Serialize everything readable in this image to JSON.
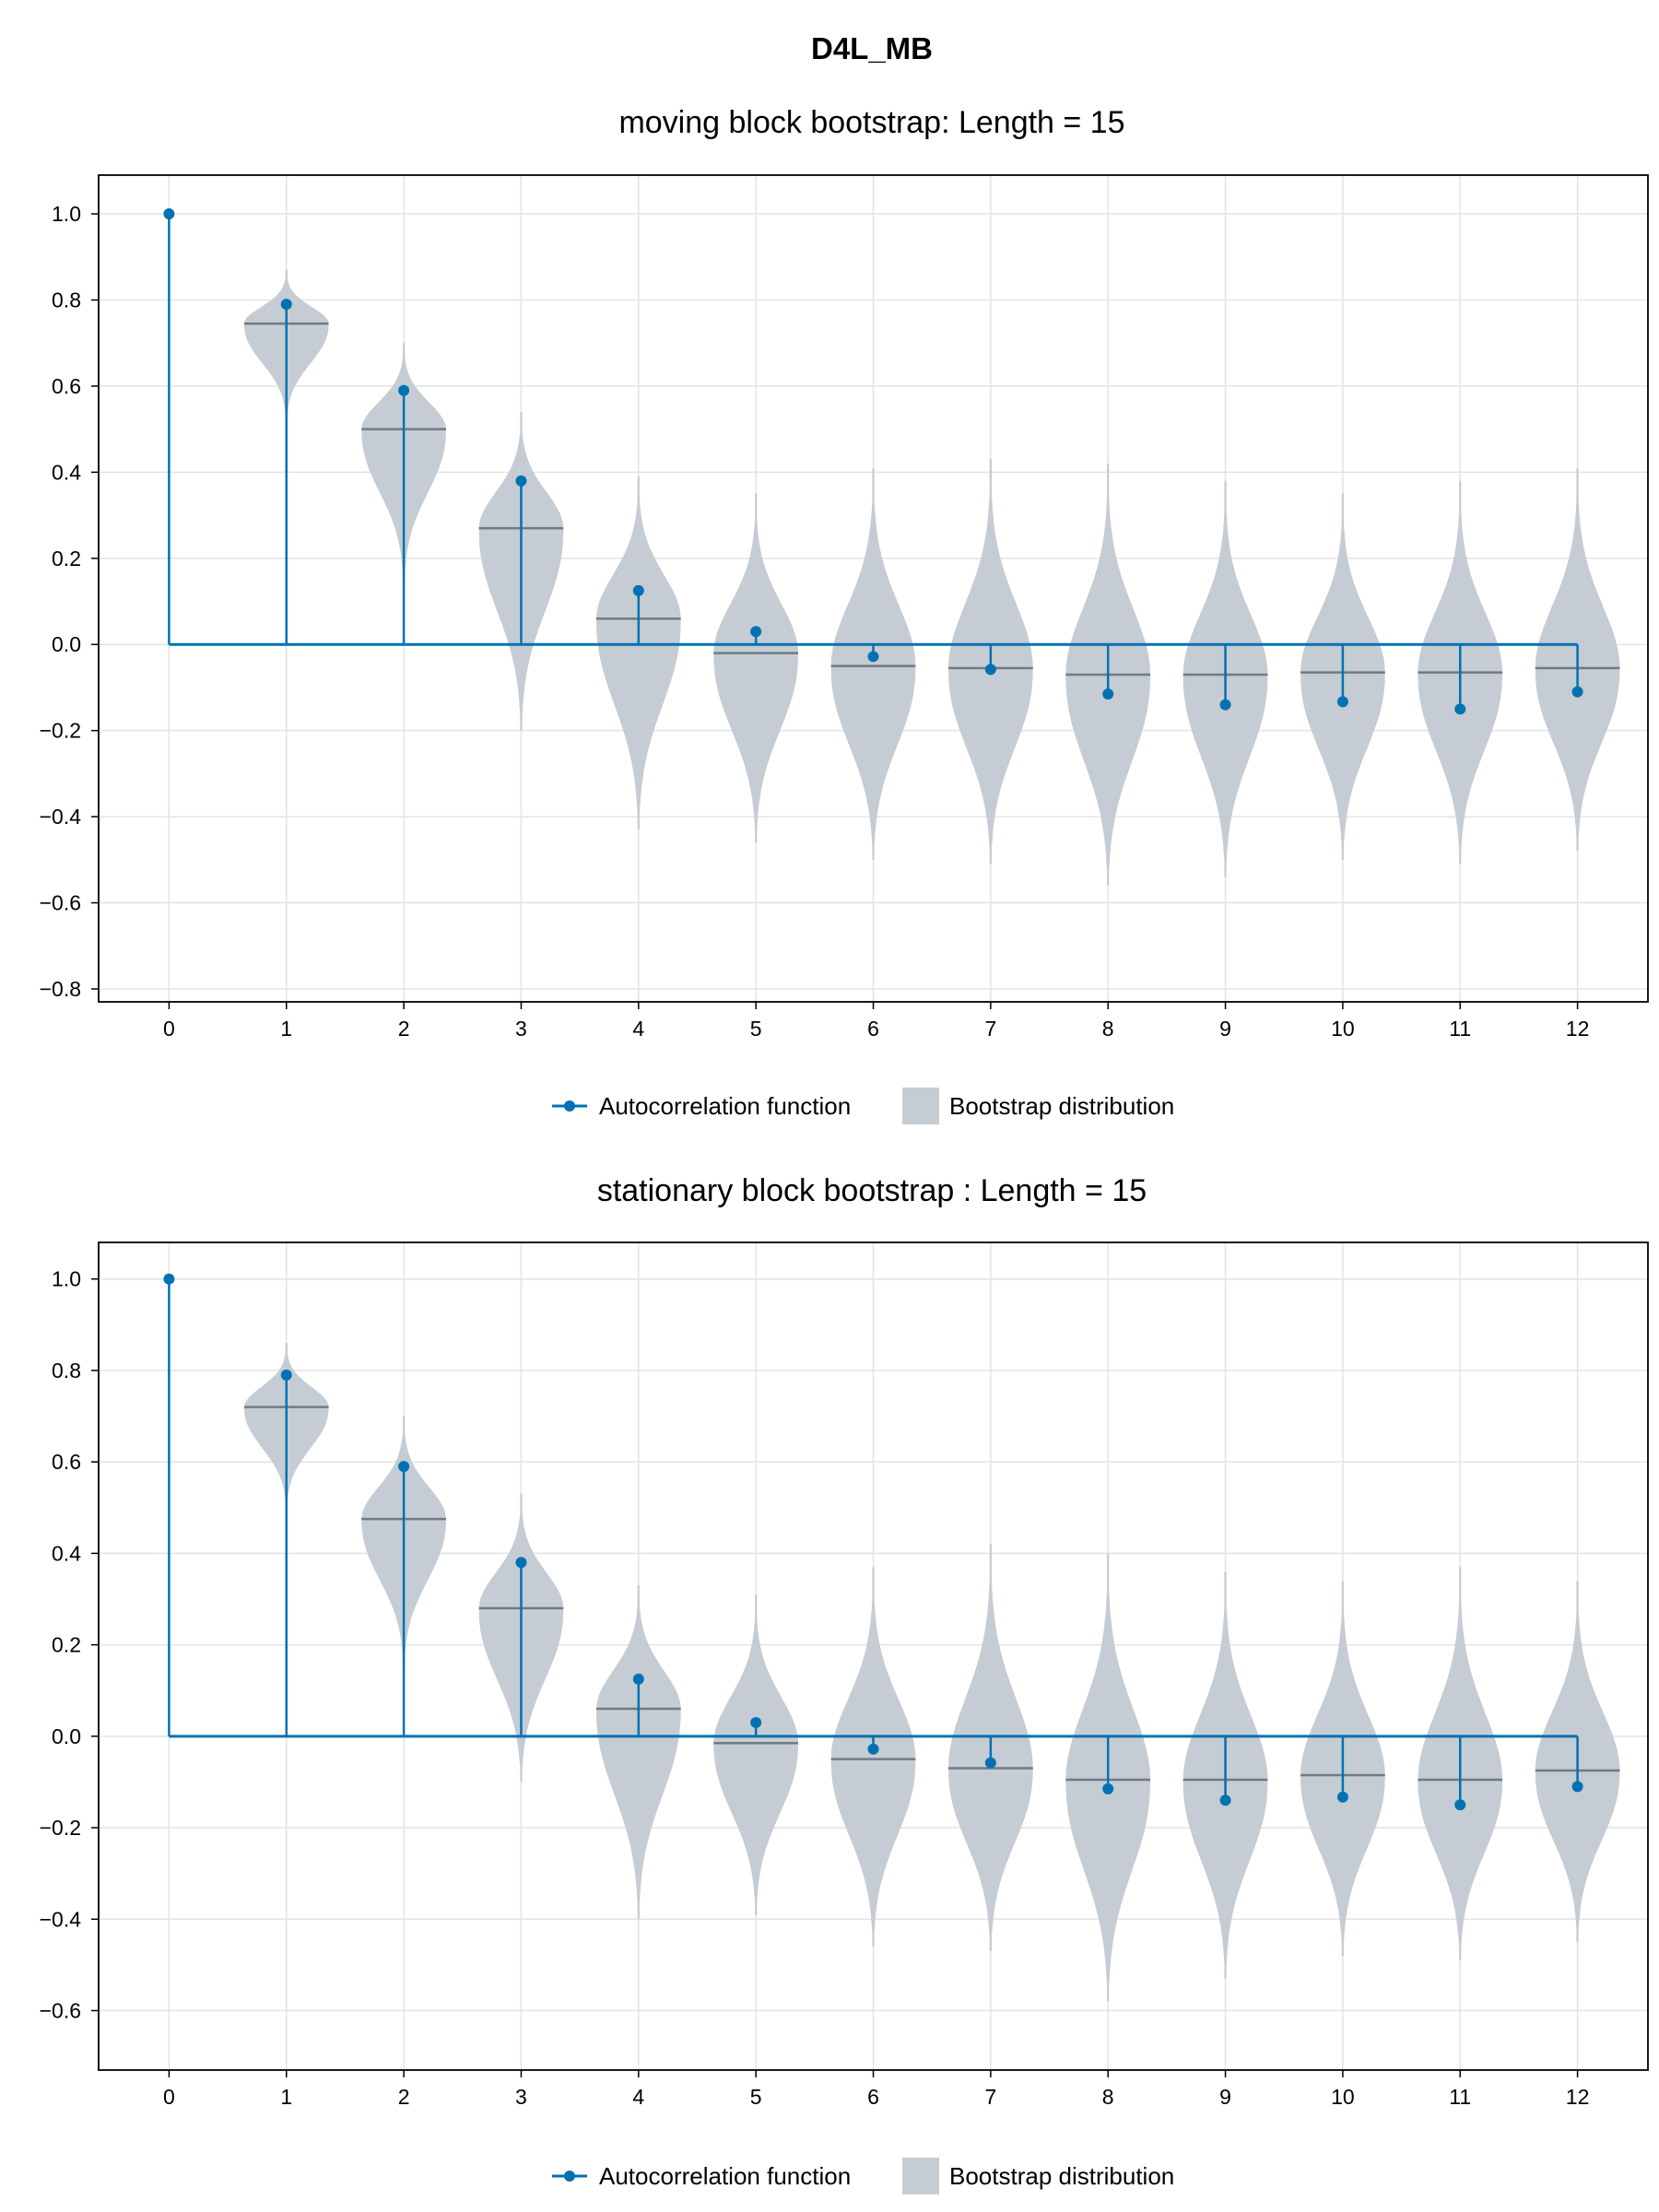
{
  "figure": {
    "title": "D4L_MB"
  },
  "colors": {
    "acf": "#0072b2",
    "violin": "#c5ccd3",
    "median": "#6f7a85"
  },
  "legend": {
    "acf_label": "Autocorrelation function",
    "boot_label": "Bootstrap distribution",
    "position": "bottom-center"
  },
  "chart_data": [
    {
      "type": "violin+stem",
      "title": "moving block bootstrap: Length = 15",
      "xlabel": "",
      "ylabel": "",
      "grid": true,
      "xlim": [
        -0.6,
        12.6
      ],
      "ylim": [
        -0.83,
        1.09
      ],
      "x_ticks": [
        0,
        1,
        2,
        3,
        4,
        5,
        6,
        7,
        8,
        9,
        10,
        11,
        12
      ],
      "y_ticks": [
        -0.8,
        -0.6,
        -0.4,
        -0.2,
        0.0,
        0.2,
        0.4,
        0.6,
        0.8,
        1.0
      ],
      "y_tick_labels": [
        "−0.8",
        "−0.6",
        "−0.4",
        "−0.2",
        "0.0",
        "0.2",
        "0.4",
        "0.6",
        "0.8",
        "1.0"
      ],
      "acf": {
        "lags": [
          0,
          1,
          2,
          3,
          4,
          5,
          6,
          7,
          8,
          9,
          10,
          11,
          12
        ],
        "values": [
          1.0,
          0.79,
          0.59,
          0.38,
          0.125,
          0.03,
          -0.028,
          -0.058,
          -0.115,
          -0.14,
          -0.133,
          -0.15,
          -0.11
        ]
      },
      "bootstrap": [
        {
          "lag": 1,
          "min": 0.52,
          "max": 0.87,
          "median": 0.745
        },
        {
          "lag": 2,
          "min": 0.14,
          "max": 0.7,
          "median": 0.5
        },
        {
          "lag": 3,
          "min": -0.2,
          "max": 0.54,
          "median": 0.27
        },
        {
          "lag": 4,
          "min": -0.43,
          "max": 0.39,
          "median": 0.06
        },
        {
          "lag": 5,
          "min": -0.46,
          "max": 0.35,
          "median": -0.02
        },
        {
          "lag": 6,
          "min": -0.5,
          "max": 0.41,
          "median": -0.05
        },
        {
          "lag": 7,
          "min": -0.51,
          "max": 0.43,
          "median": -0.055
        },
        {
          "lag": 8,
          "min": -0.56,
          "max": 0.42,
          "median": -0.07
        },
        {
          "lag": 9,
          "min": -0.54,
          "max": 0.38,
          "median": -0.07
        },
        {
          "lag": 10,
          "min": -0.5,
          "max": 0.35,
          "median": -0.065
        },
        {
          "lag": 11,
          "min": -0.51,
          "max": 0.38,
          "median": -0.065
        },
        {
          "lag": 12,
          "min": -0.48,
          "max": 0.41,
          "median": -0.055
        }
      ]
    },
    {
      "type": "violin+stem",
      "title": "stationary block bootstrap : Length = 15",
      "xlabel": "",
      "ylabel": "",
      "grid": true,
      "xlim": [
        -0.6,
        12.6
      ],
      "ylim": [
        -0.73,
        1.08
      ],
      "x_ticks": [
        0,
        1,
        2,
        3,
        4,
        5,
        6,
        7,
        8,
        9,
        10,
        11,
        12
      ],
      "y_ticks": [
        -0.6,
        -0.4,
        -0.2,
        0.0,
        0.2,
        0.4,
        0.6,
        0.8,
        1.0
      ],
      "y_tick_labels": [
        "−0.6",
        "−0.4",
        "−0.2",
        "0.0",
        "0.2",
        "0.4",
        "0.6",
        "0.8",
        "1.0"
      ],
      "acf": {
        "lags": [
          0,
          1,
          2,
          3,
          4,
          5,
          6,
          7,
          8,
          9,
          10,
          11,
          12
        ],
        "values": [
          1.0,
          0.79,
          0.59,
          0.38,
          0.125,
          0.03,
          -0.028,
          -0.058,
          -0.115,
          -0.14,
          -0.133,
          -0.15,
          -0.11
        ]
      },
      "bootstrap": [
        {
          "lag": 1,
          "min": 0.5,
          "max": 0.86,
          "median": 0.72
        },
        {
          "lag": 2,
          "min": 0.15,
          "max": 0.7,
          "median": 0.475
        },
        {
          "lag": 3,
          "min": -0.1,
          "max": 0.53,
          "median": 0.28
        },
        {
          "lag": 4,
          "min": -0.4,
          "max": 0.33,
          "median": 0.06
        },
        {
          "lag": 5,
          "min": -0.39,
          "max": 0.31,
          "median": -0.015
        },
        {
          "lag": 6,
          "min": -0.46,
          "max": 0.37,
          "median": -0.05
        },
        {
          "lag": 7,
          "min": -0.47,
          "max": 0.42,
          "median": -0.07
        },
        {
          "lag": 8,
          "min": -0.58,
          "max": 0.4,
          "median": -0.095
        },
        {
          "lag": 9,
          "min": -0.53,
          "max": 0.36,
          "median": -0.095
        },
        {
          "lag": 10,
          "min": -0.48,
          "max": 0.34,
          "median": -0.085
        },
        {
          "lag": 11,
          "min": -0.49,
          "max": 0.37,
          "median": -0.095
        },
        {
          "lag": 12,
          "min": -0.45,
          "max": 0.34,
          "median": -0.075
        }
      ]
    }
  ]
}
